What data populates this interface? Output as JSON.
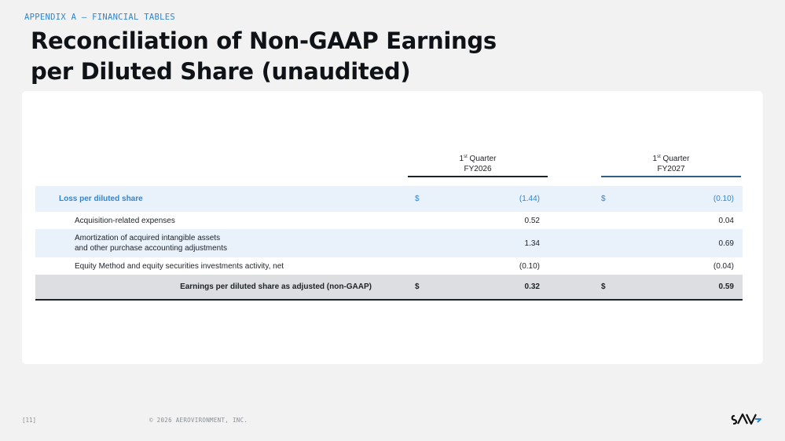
{
  "header": {
    "eyebrow": "APPENDIX A – FINANCIAL TABLES",
    "title_line1": "Reconciliation of Non-GAAP Earnings",
    "title_line2": "per Diluted Share (unaudited)"
  },
  "table": {
    "columns": [
      {
        "ordinal": "1",
        "ordinal_suffix": "st",
        "period": "Quarter",
        "fiscal_year": "FY2026"
      },
      {
        "ordinal": "1",
        "ordinal_suffix": "st",
        "period": "Quarter",
        "fiscal_year": "FY2027"
      }
    ],
    "rows": [
      {
        "label": "Loss per diluted share",
        "currency1": "$",
        "value1": "(1.44)",
        "currency2": "$",
        "value2": "(0.10)"
      },
      {
        "label": "Acquisition-related expenses",
        "value1": "0.52",
        "value2": "0.04"
      },
      {
        "label_line1": "Amortization of acquired intangible assets",
        "label_line2": "and other purchase accounting adjustments",
        "value1": "1.34",
        "value2": "0.69"
      },
      {
        "label": "Equity Method and equity securities investments activity, net",
        "value1": "(0.10)",
        "value2": "(0.04)"
      },
      {
        "label": "Earnings per diluted share as adjusted (non-GAAP)",
        "currency1": "$",
        "value1": "0.32",
        "currency2": "$",
        "value2": "0.59"
      }
    ]
  },
  "footer": {
    "page": "[11]",
    "copyright": "© 2026 AEROVIRONMENT, INC.",
    "logo": "AV"
  },
  "colors": {
    "accent": "#2f86d0",
    "shade": "#e9f1fb",
    "total_row": "#dcdee1"
  }
}
